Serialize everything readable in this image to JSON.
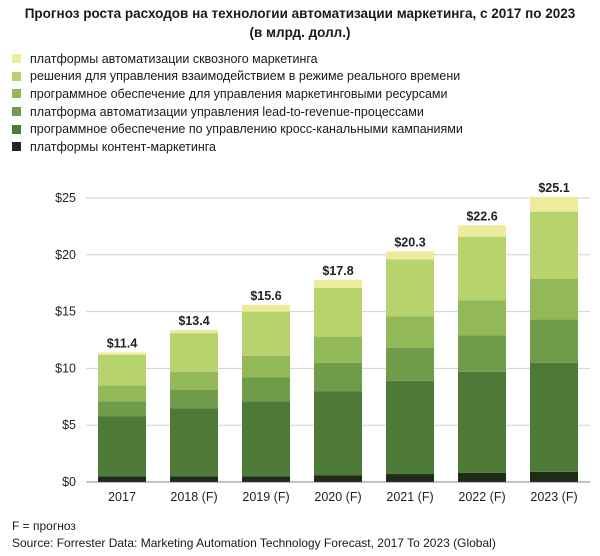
{
  "chart_data": {
    "type": "bar",
    "stacked": true,
    "title": "Прогноз роста расходов на технологии автоматизации маркетинга, с 2017 по 2023",
    "subtitle": "(в млрд. долл.)",
    "categories": [
      "2017",
      "2018 (F)",
      "2019 (F)",
      "2020 (F)",
      "2021 (F)",
      "2022 (F)",
      "2023 (F)"
    ],
    "totals": [
      11.4,
      13.4,
      15.6,
      17.8,
      20.3,
      22.6,
      25.1
    ],
    "total_labels": [
      "$11.4",
      "$13.4",
      "$15.6",
      "$17.8",
      "$20.3",
      "$22.6",
      "$25.1"
    ],
    "series": [
      {
        "name": "платформы контент-маркетинга",
        "color": "#1e2b16",
        "values": [
          0.5,
          0.5,
          0.5,
          0.6,
          0.7,
          0.8,
          0.9
        ]
      },
      {
        "name": "программное обеспечение по управлению кросс-канальными кампаниями",
        "color": "#4e7a38",
        "values": [
          5.3,
          6.0,
          6.6,
          7.4,
          8.2,
          8.9,
          9.6
        ]
      },
      {
        "name": "платформа автоматизации управления lead-to-revenue-процессами",
        "color": "#6f9b4a",
        "values": [
          1.3,
          1.6,
          2.1,
          2.5,
          2.9,
          3.2,
          3.8
        ]
      },
      {
        "name": "программное обеспечение для управления маркетинговыми ресурсами",
        "color": "#93b858",
        "values": [
          1.4,
          1.6,
          1.9,
          2.3,
          2.8,
          3.1,
          3.6
        ]
      },
      {
        "name": "решения для управления взаимодействием в режиме реального времени",
        "color": "#b7d36e",
        "values": [
          2.7,
          3.4,
          3.9,
          4.3,
          5.0,
          5.6,
          5.9
        ]
      },
      {
        "name": "платформы автоматизации сквозного маркетинга",
        "color": "#ecec9c",
        "values": [
          0.2,
          0.3,
          0.6,
          0.7,
          0.7,
          1.0,
          1.3
        ]
      }
    ],
    "y_ticks": [
      0,
      5,
      10,
      15,
      20,
      25
    ],
    "y_tick_labels": [
      "$0",
      "$5",
      "$10",
      "$15",
      "$20",
      "$25"
    ],
    "ylim": [
      0,
      25
    ],
    "grid": true,
    "legend_position": "top-left"
  },
  "legend_items": [
    {
      "label": "платформы автоматизации сквозного маркетинга",
      "color": "#ecec9c"
    },
    {
      "label": "решения для управления взаимодействием в режиме реального времени",
      "color": "#b7d36e"
    },
    {
      "label": "программное обеспечение для управления маркетинговыми ресурсами",
      "color": "#93b858"
    },
    {
      "label": "платформа автоматизации управления lead-to-revenue-процессами",
      "color": "#6f9b4a"
    },
    {
      "label": "программное обеспечение по управлению кросс-канальными кампаниями",
      "color": "#4e7a38"
    },
    {
      "label": "платформы контент-маркетинга",
      "color": "#1e2b16"
    }
  ],
  "footnote": "F = прогноз",
  "source": "Source: Forrester Data: Marketing Automation Technology Forecast, 2017 To 2023 (Global)"
}
